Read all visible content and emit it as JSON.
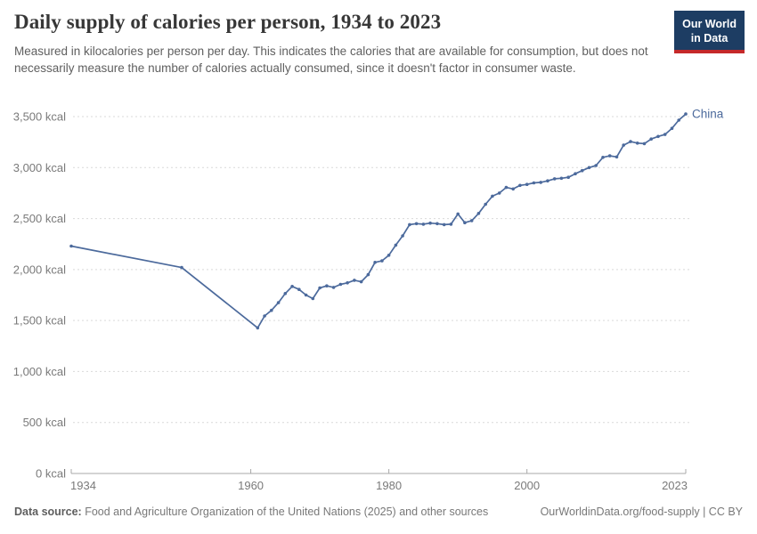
{
  "header": {
    "title": "Daily supply of calories per person, 1934 to 2023",
    "subtitle": "Measured in kilocalories per person per day. This indicates the calories that are available for consumption, but does not necessarily measure the number of calories actually consumed, since it doesn't factor in consumer waste.",
    "logo": {
      "line1": "Our World",
      "line2": "in Data",
      "bg_color": "#1d3d63",
      "bar_color": "#c5292a"
    }
  },
  "chart_data": {
    "type": "line",
    "title": "Daily supply of calories per person, 1934 to 2023",
    "ylabel": "kcal",
    "xlabel": "",
    "xlim": [
      1934,
      2023
    ],
    "ylim": [
      0,
      3500
    ],
    "grid": "horizontal-dashed",
    "legend_position": "end-of-line-label",
    "line_color": "#4c6a9c",
    "y_ticks": [
      {
        "value": 0,
        "label": "0 kcal"
      },
      {
        "value": 500,
        "label": "500 kcal"
      },
      {
        "value": 1000,
        "label": "1,000 kcal"
      },
      {
        "value": 1500,
        "label": "1,500 kcal"
      },
      {
        "value": 2000,
        "label": "2,000 kcal"
      },
      {
        "value": 2500,
        "label": "2,500 kcal"
      },
      {
        "value": 3000,
        "label": "3,000 kcal"
      },
      {
        "value": 3500,
        "label": "3,500 kcal"
      }
    ],
    "x_ticks": [
      "1934",
      "1960",
      "1980",
      "2000",
      "2023"
    ],
    "series": [
      {
        "name": "China",
        "color": "#4c6a9c",
        "points": [
          [
            1934,
            2230
          ],
          [
            1950,
            2020
          ],
          [
            1961,
            1428
          ],
          [
            1962,
            1545
          ],
          [
            1963,
            1600
          ],
          [
            1964,
            1675
          ],
          [
            1965,
            1765
          ],
          [
            1966,
            1835
          ],
          [
            1967,
            1805
          ],
          [
            1968,
            1750
          ],
          [
            1969,
            1715
          ],
          [
            1970,
            1820
          ],
          [
            1971,
            1840
          ],
          [
            1972,
            1825
          ],
          [
            1973,
            1855
          ],
          [
            1974,
            1870
          ],
          [
            1975,
            1895
          ],
          [
            1976,
            1880
          ],
          [
            1977,
            1950
          ],
          [
            1978,
            2070
          ],
          [
            1979,
            2085
          ],
          [
            1980,
            2140
          ],
          [
            1981,
            2240
          ],
          [
            1982,
            2330
          ],
          [
            1983,
            2440
          ],
          [
            1984,
            2450
          ],
          [
            1985,
            2445
          ],
          [
            1986,
            2455
          ],
          [
            1987,
            2450
          ],
          [
            1988,
            2440
          ],
          [
            1989,
            2445
          ],
          [
            1990,
            2545
          ],
          [
            1991,
            2460
          ],
          [
            1992,
            2480
          ],
          [
            1993,
            2550
          ],
          [
            1994,
            2640
          ],
          [
            1995,
            2720
          ],
          [
            1996,
            2750
          ],
          [
            1997,
            2805
          ],
          [
            1998,
            2790
          ],
          [
            1999,
            2825
          ],
          [
            2000,
            2835
          ],
          [
            2001,
            2850
          ],
          [
            2002,
            2855
          ],
          [
            2003,
            2870
          ],
          [
            2004,
            2890
          ],
          [
            2005,
            2895
          ],
          [
            2006,
            2905
          ],
          [
            2007,
            2940
          ],
          [
            2008,
            2970
          ],
          [
            2009,
            3000
          ],
          [
            2010,
            3020
          ],
          [
            2011,
            3100
          ],
          [
            2012,
            3115
          ],
          [
            2013,
            3105
          ],
          [
            2014,
            3220
          ],
          [
            2015,
            3255
          ],
          [
            2016,
            3240
          ],
          [
            2017,
            3235
          ],
          [
            2018,
            3280
          ],
          [
            2019,
            3305
          ],
          [
            2020,
            3325
          ],
          [
            2021,
            3385
          ],
          [
            2022,
            3465
          ],
          [
            2023,
            3525
          ]
        ]
      }
    ]
  },
  "footer": {
    "datasource_label": "Data source:",
    "datasource_text": " Food and Agriculture Organization of the United Nations (2025) and other sources",
    "link_text": "OurWorldinData.org/food-supply | CC BY"
  }
}
